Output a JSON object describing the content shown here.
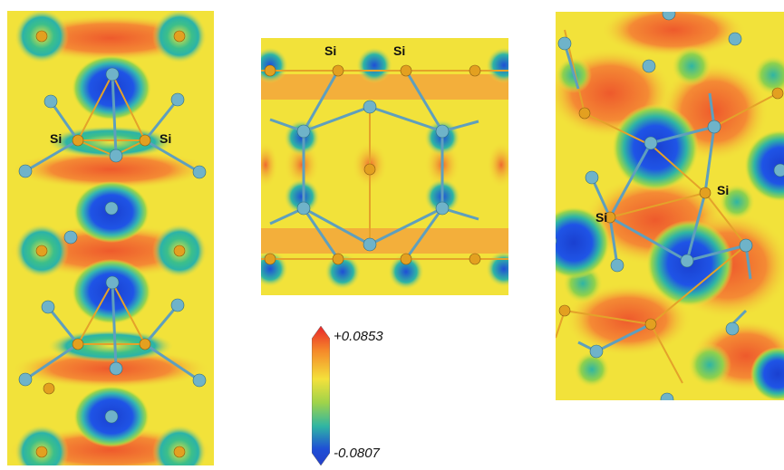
{
  "colorbar": {
    "max_label": "+0.0853",
    "min_label": "-0.0807",
    "colors": [
      "#e8252a",
      "#f58a2a",
      "#f4e13b",
      "#9fd34a",
      "#2fb5a4",
      "#1f4fd6",
      "#2540c9"
    ]
  },
  "atom_labels": {
    "left_a": "Si",
    "left_b": "Si",
    "middle_a": "Si",
    "middle_b": "Si",
    "right_a": "Si",
    "right_b": "Si"
  },
  "colors": {
    "background_field": "#f2e23a",
    "positive_lobe": "#f07a3a",
    "negative_core": "#1e4fe0",
    "si_atom": "#e3a020",
    "other_atom": "#6fb3c9",
    "bond_orange": "#e4a22a",
    "bond_blue": "#5f9fbd"
  }
}
